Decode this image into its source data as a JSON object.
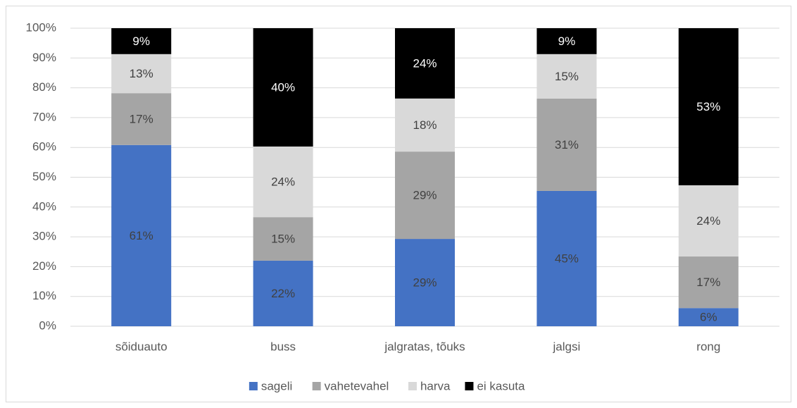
{
  "chart_data": {
    "type": "stacked_bar",
    "categories": [
      "sõiduauto",
      "buss",
      "jalgratas, tõuks",
      "jalgsi",
      "rong"
    ],
    "series": [
      {
        "name": "sageli",
        "color": "#4472c4",
        "values": [
          60.8,
          22.0,
          29.3,
          45.4,
          6.1
        ],
        "value_labels": [
          "61%",
          "22%",
          "29%",
          "45%",
          "6%"
        ]
      },
      {
        "name": "vahetevahel",
        "color": "#a5a5a5",
        "values": [
          17.4,
          14.6,
          29.3,
          31.0,
          17.3
        ],
        "value_labels": [
          "17%",
          "15%",
          "29%",
          "31%",
          "17%"
        ]
      },
      {
        "name": "harva",
        "color": "#d9d9d9",
        "values": [
          13.1,
          23.7,
          17.8,
          14.9,
          23.9
        ],
        "value_labels": [
          "13%",
          "24%",
          "18%",
          "15%",
          "24%"
        ]
      },
      {
        "name": "ei kasuta",
        "color": "#000000",
        "values": [
          8.7,
          39.7,
          23.6,
          8.7,
          52.7
        ],
        "value_labels": [
          "9%",
          "40%",
          "24%",
          "9%",
          "53%"
        ]
      }
    ],
    "ylim": [
      0,
      100
    ],
    "yticks": [
      {
        "value": 0,
        "label": "0%"
      },
      {
        "value": 10,
        "label": "10%"
      },
      {
        "value": 20,
        "label": "20%"
      },
      {
        "value": 30,
        "label": "30%"
      },
      {
        "value": 40,
        "label": "40%"
      },
      {
        "value": 50,
        "label": "50%"
      },
      {
        "value": 60,
        "label": "60%"
      },
      {
        "value": 70,
        "label": "70%"
      },
      {
        "value": 80,
        "label": "80%"
      },
      {
        "value": 90,
        "label": "90%"
      },
      {
        "value": 100,
        "label": "100%"
      }
    ],
    "grid": true,
    "legend": "bottom"
  }
}
